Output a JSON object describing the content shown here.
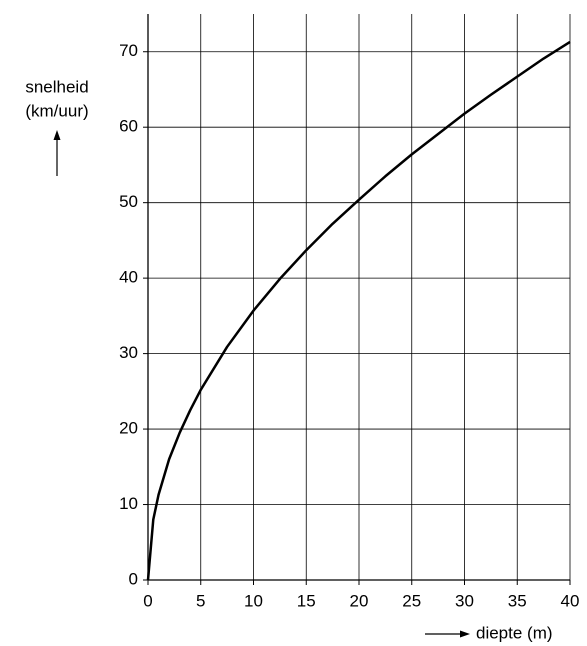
{
  "chart_data": {
    "type": "line",
    "y_label": "snelheid",
    "y_unit": "(km/uur)",
    "x_label": "diepte (m)",
    "x": [
      0,
      0.5,
      1,
      2,
      3,
      4,
      5,
      7.5,
      10,
      12.5,
      15,
      17.5,
      20,
      22.5,
      25,
      27.5,
      30,
      32.5,
      35,
      37.5,
      40
    ],
    "series": [
      {
        "color": "#000000",
        "values": [
          0,
          8,
          11.3,
          16,
          19.5,
          22.5,
          25.2,
          30.9,
          35.7,
          39.9,
          43.7,
          47.2,
          50.4,
          53.5,
          56.4,
          59.1,
          61.8,
          64.3,
          66.7,
          69.1,
          71.3
        ]
      }
    ],
    "xlim": [
      0,
      40
    ],
    "xticks": [
      0,
      5,
      10,
      15,
      20,
      25,
      30,
      35,
      40
    ],
    "ylim": [
      0,
      75
    ],
    "yticks": [
      0,
      10,
      20,
      30,
      40,
      50,
      60,
      70
    ],
    "grid": true
  }
}
